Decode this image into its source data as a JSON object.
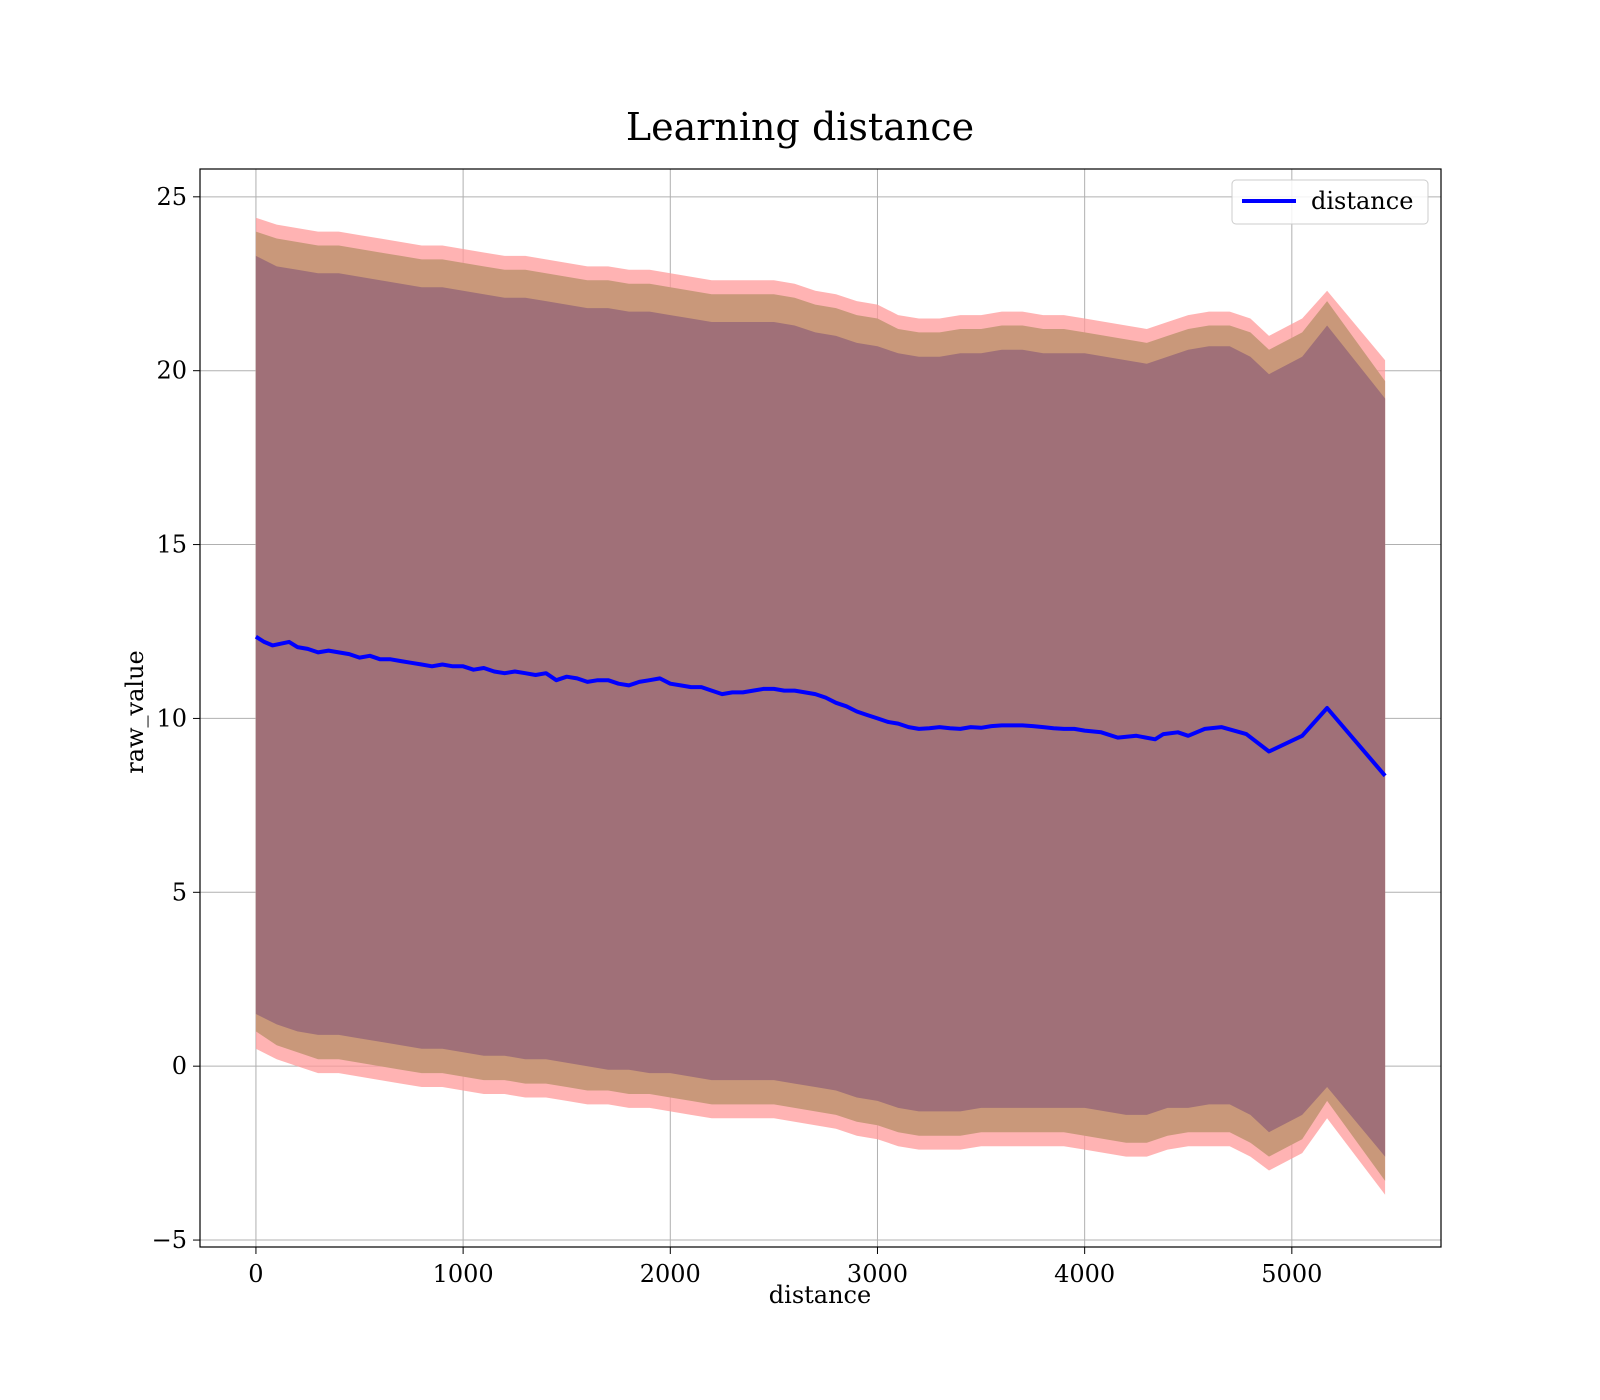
{
  "chart_data": {
    "type": "line",
    "title": "Learning distance",
    "xlabel": "distance",
    "ylabel": "raw_value",
    "xlim": [
      -270,
      5720
    ],
    "ylim": [
      -5.2,
      25.8
    ],
    "xticks": [
      0,
      1000,
      2000,
      3000,
      4000,
      5000
    ],
    "yticks": [
      -5,
      0,
      5,
      10,
      15,
      20,
      25
    ],
    "ytick_labels": [
      "−5",
      "0",
      "5",
      "10",
      "15",
      "20",
      "25"
    ],
    "grid": true,
    "legend_position": "upper right",
    "colors": {
      "line": "#0000ff",
      "band_outer": "#ff9999",
      "band_middle": "#c9987a",
      "band_inner": "#a07078",
      "axes": "#000000"
    },
    "series": [
      {
        "name": "distance",
        "x": [
          0,
          40,
          80,
          120,
          160,
          200,
          250,
          300,
          350,
          400,
          450,
          500,
          550,
          600,
          650,
          700,
          750,
          800,
          850,
          900,
          950,
          1000,
          1050,
          1100,
          1150,
          1200,
          1250,
          1300,
          1350,
          1400,
          1450,
          1500,
          1550,
          1600,
          1650,
          1700,
          1750,
          1800,
          1850,
          1900,
          1950,
          2000,
          2050,
          2100,
          2150,
          2200,
          2250,
          2300,
          2350,
          2400,
          2450,
          2500,
          2550,
          2600,
          2650,
          2700,
          2750,
          2800,
          2850,
          2900,
          2950,
          3000,
          3050,
          3100,
          3150,
          3200,
          3250,
          3300,
          3350,
          3400,
          3450,
          3500,
          3550,
          3600,
          3650,
          3700,
          3750,
          3800,
          3850,
          3900,
          3950,
          4000,
          4080,
          4160,
          4250,
          4340,
          4380,
          4450,
          4500,
          4580,
          4660,
          4780,
          4890,
          5050,
          5170,
          5450
        ],
        "y": [
          12.35,
          12.2,
          12.1,
          12.15,
          12.2,
          12.05,
          12.0,
          11.9,
          11.95,
          11.9,
          11.85,
          11.75,
          11.8,
          11.7,
          11.7,
          11.65,
          11.6,
          11.55,
          11.5,
          11.55,
          11.5,
          11.5,
          11.4,
          11.45,
          11.35,
          11.3,
          11.35,
          11.3,
          11.25,
          11.3,
          11.1,
          11.2,
          11.15,
          11.05,
          11.1,
          11.1,
          11.0,
          10.95,
          11.05,
          11.1,
          11.15,
          11.0,
          10.95,
          10.9,
          10.9,
          10.8,
          10.7,
          10.75,
          10.75,
          10.8,
          10.85,
          10.85,
          10.8,
          10.8,
          10.75,
          10.7,
          10.6,
          10.45,
          10.35,
          10.2,
          10.1,
          10.0,
          9.9,
          9.85,
          9.75,
          9.7,
          9.72,
          9.75,
          9.72,
          9.7,
          9.75,
          9.73,
          9.78,
          9.8,
          9.8,
          9.8,
          9.78,
          9.75,
          9.72,
          9.7,
          9.7,
          9.65,
          9.6,
          9.45,
          9.5,
          9.4,
          9.55,
          9.6,
          9.5,
          9.7,
          9.75,
          9.55,
          9.05,
          9.5,
          10.3,
          8.35
        ]
      }
    ],
    "bands": {
      "outer": {
        "x": [
          0,
          100,
          200,
          300,
          400,
          500,
          600,
          700,
          800,
          900,
          1000,
          1100,
          1200,
          1300,
          1400,
          1500,
          1600,
          1700,
          1800,
          1900,
          2000,
          2100,
          2200,
          2300,
          2400,
          2500,
          2600,
          2700,
          2800,
          2900,
          3000,
          3100,
          3200,
          3300,
          3400,
          3500,
          3600,
          3700,
          3800,
          3900,
          4000,
          4100,
          4200,
          4300,
          4400,
          4500,
          4600,
          4700,
          4800,
          4890,
          5050,
          5170,
          5450
        ],
        "upper": [
          24.4,
          24.2,
          24.1,
          24.0,
          24.0,
          23.9,
          23.8,
          23.7,
          23.6,
          23.6,
          23.5,
          23.4,
          23.3,
          23.3,
          23.2,
          23.1,
          23.0,
          23.0,
          22.9,
          22.9,
          22.8,
          22.7,
          22.6,
          22.6,
          22.6,
          22.6,
          22.5,
          22.3,
          22.2,
          22.0,
          21.9,
          21.6,
          21.5,
          21.5,
          21.6,
          21.6,
          21.7,
          21.7,
          21.6,
          21.6,
          21.5,
          21.4,
          21.3,
          21.2,
          21.4,
          21.6,
          21.7,
          21.7,
          21.5,
          21.0,
          21.5,
          22.3,
          20.3
        ],
        "lower": [
          0.5,
          0.2,
          0.0,
          -0.2,
          -0.2,
          -0.3,
          -0.4,
          -0.5,
          -0.6,
          -0.6,
          -0.7,
          -0.8,
          -0.8,
          -0.9,
          -0.9,
          -1.0,
          -1.1,
          -1.1,
          -1.2,
          -1.2,
          -1.3,
          -1.4,
          -1.5,
          -1.5,
          -1.5,
          -1.5,
          -1.6,
          -1.7,
          -1.8,
          -2.0,
          -2.1,
          -2.3,
          -2.4,
          -2.4,
          -2.4,
          -2.3,
          -2.3,
          -2.3,
          -2.3,
          -2.3,
          -2.4,
          -2.5,
          -2.6,
          -2.6,
          -2.4,
          -2.3,
          -2.3,
          -2.3,
          -2.6,
          -3.0,
          -2.5,
          -1.5,
          -3.7
        ]
      },
      "middle": {
        "x": [
          0,
          100,
          200,
          300,
          400,
          500,
          600,
          700,
          800,
          900,
          1000,
          1100,
          1200,
          1300,
          1400,
          1500,
          1600,
          1700,
          1800,
          1900,
          2000,
          2100,
          2200,
          2300,
          2400,
          2500,
          2600,
          2700,
          2800,
          2900,
          3000,
          3100,
          3200,
          3300,
          3400,
          3500,
          3600,
          3700,
          3800,
          3900,
          4000,
          4100,
          4200,
          4300,
          4400,
          4500,
          4600,
          4700,
          4800,
          4890,
          5050,
          5170,
          5450
        ],
        "upper": [
          24.0,
          23.8,
          23.7,
          23.6,
          23.6,
          23.5,
          23.4,
          23.3,
          23.2,
          23.2,
          23.1,
          23.0,
          22.9,
          22.9,
          22.8,
          22.7,
          22.6,
          22.6,
          22.5,
          22.5,
          22.4,
          22.3,
          22.2,
          22.2,
          22.2,
          22.2,
          22.1,
          21.9,
          21.8,
          21.6,
          21.5,
          21.2,
          21.1,
          21.1,
          21.2,
          21.2,
          21.3,
          21.3,
          21.2,
          21.2,
          21.1,
          21.0,
          20.9,
          20.8,
          21.0,
          21.2,
          21.3,
          21.3,
          21.1,
          20.6,
          21.1,
          22.0,
          19.7
        ],
        "lower": [
          1.0,
          0.6,
          0.4,
          0.2,
          0.2,
          0.1,
          0.0,
          -0.1,
          -0.2,
          -0.2,
          -0.3,
          -0.4,
          -0.4,
          -0.5,
          -0.5,
          -0.6,
          -0.7,
          -0.7,
          -0.8,
          -0.8,
          -0.9,
          -1.0,
          -1.1,
          -1.1,
          -1.1,
          -1.1,
          -1.2,
          -1.3,
          -1.4,
          -1.6,
          -1.7,
          -1.9,
          -2.0,
          -2.0,
          -2.0,
          -1.9,
          -1.9,
          -1.9,
          -1.9,
          -1.9,
          -2.0,
          -2.1,
          -2.2,
          -2.2,
          -2.0,
          -1.9,
          -1.9,
          -1.9,
          -2.2,
          -2.6,
          -2.1,
          -1.0,
          -3.3
        ]
      },
      "inner": {
        "x": [
          0,
          100,
          200,
          300,
          400,
          500,
          600,
          700,
          800,
          900,
          1000,
          1100,
          1200,
          1300,
          1400,
          1500,
          1600,
          1700,
          1800,
          1900,
          2000,
          2100,
          2200,
          2300,
          2400,
          2500,
          2600,
          2700,
          2800,
          2900,
          3000,
          3100,
          3200,
          3300,
          3400,
          3500,
          3600,
          3700,
          3800,
          3900,
          4000,
          4100,
          4200,
          4300,
          4400,
          4500,
          4600,
          4700,
          4800,
          4890,
          5050,
          5170,
          5450
        ],
        "upper": [
          23.3,
          23.0,
          22.9,
          22.8,
          22.8,
          22.7,
          22.6,
          22.5,
          22.4,
          22.4,
          22.3,
          22.2,
          22.1,
          22.1,
          22.0,
          21.9,
          21.8,
          21.8,
          21.7,
          21.7,
          21.6,
          21.5,
          21.4,
          21.4,
          21.4,
          21.4,
          21.3,
          21.1,
          21.0,
          20.8,
          20.7,
          20.5,
          20.4,
          20.4,
          20.5,
          20.5,
          20.6,
          20.6,
          20.5,
          20.5,
          20.5,
          20.4,
          20.3,
          20.2,
          20.4,
          20.6,
          20.7,
          20.7,
          20.4,
          19.9,
          20.4,
          21.3,
          19.2
        ],
        "lower": [
          1.5,
          1.2,
          1.0,
          0.9,
          0.9,
          0.8,
          0.7,
          0.6,
          0.5,
          0.5,
          0.4,
          0.3,
          0.3,
          0.2,
          0.2,
          0.1,
          0.0,
          -0.1,
          -0.1,
          -0.2,
          -0.2,
          -0.3,
          -0.4,
          -0.4,
          -0.4,
          -0.4,
          -0.5,
          -0.6,
          -0.7,
          -0.9,
          -1.0,
          -1.2,
          -1.3,
          -1.3,
          -1.3,
          -1.2,
          -1.2,
          -1.2,
          -1.2,
          -1.2,
          -1.2,
          -1.3,
          -1.4,
          -1.4,
          -1.2,
          -1.2,
          -1.1,
          -1.1,
          -1.4,
          -1.9,
          -1.4,
          -0.6,
          -2.6
        ]
      }
    }
  }
}
